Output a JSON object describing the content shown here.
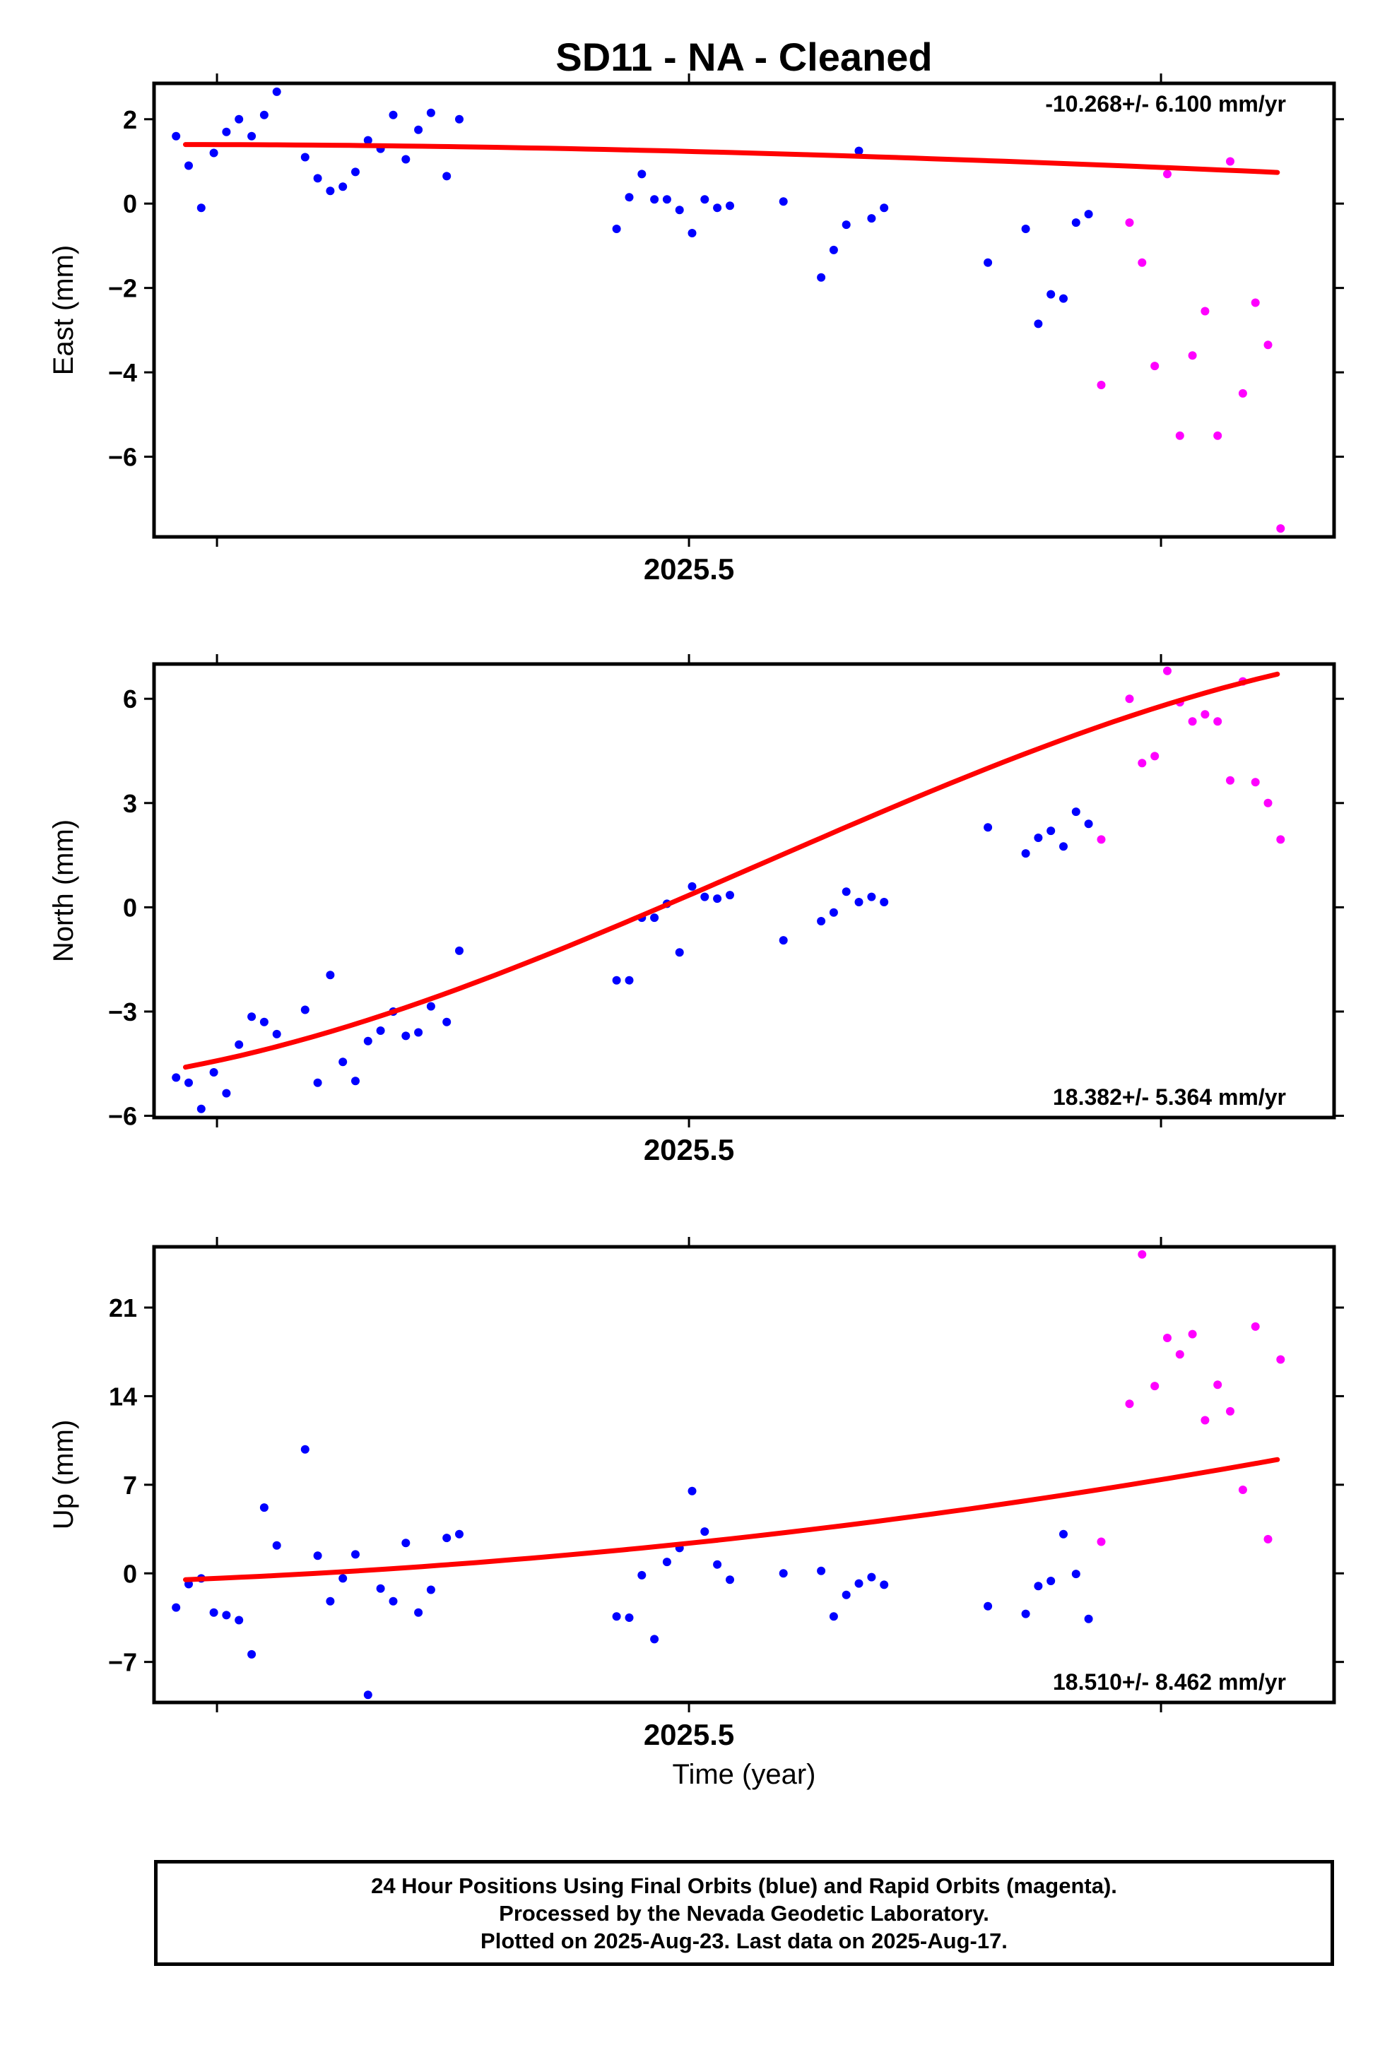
{
  "title": "SD11  - NA - Cleaned",
  "xlabel": "Time (year)",
  "footer": {
    "line1": "24 Hour Positions Using Final Orbits (blue) and Rapid Orbits (magenta).",
    "line2": "Processed by the Nevada Geodetic Laboratory.",
    "line3": "Plotted on 2025-Aug-23. Last data on 2025-Aug-17."
  },
  "colors": {
    "final": "#0000ff",
    "rapid": "#ff00ff",
    "fit": "#ff0000"
  },
  "chart_data": [
    {
      "type": "scatter",
      "ylabel": "East (mm)",
      "rate": "-10.268+/- 6.100 mm/yr",
      "ylim": [
        -7.9,
        2.85
      ],
      "yticks": [
        -6,
        -4,
        -2,
        0,
        2
      ],
      "xlim": [
        2025.33,
        2025.705
      ],
      "xticks_major": [
        2025.5
      ],
      "xticks_minor": [
        2025.35,
        2025.65
      ],
      "fit": {
        "x0": 2025.34,
        "x1": 2025.687,
        "coef": [
          1.4,
          -0.06,
          -6.6,
          3.7
        ]
      },
      "series": [
        {
          "kind": "final",
          "points": [
            [
              2025.337,
              1.6
            ],
            [
              2025.341,
              0.9
            ],
            [
              2025.345,
              -0.1
            ],
            [
              2025.349,
              1.2
            ],
            [
              2025.353,
              1.7
            ],
            [
              2025.357,
              2.0
            ],
            [
              2025.361,
              1.6
            ],
            [
              2025.365,
              2.1
            ],
            [
              2025.369,
              2.65
            ],
            [
              2025.378,
              1.1
            ],
            [
              2025.382,
              0.6
            ],
            [
              2025.386,
              0.3
            ],
            [
              2025.39,
              0.4
            ],
            [
              2025.394,
              0.75
            ],
            [
              2025.398,
              1.5
            ],
            [
              2025.402,
              1.3
            ],
            [
              2025.406,
              2.1
            ],
            [
              2025.41,
              1.05
            ],
            [
              2025.414,
              1.75
            ],
            [
              2025.418,
              2.15
            ],
            [
              2025.423,
              0.65
            ],
            [
              2025.427,
              2.0
            ],
            [
              2025.477,
              -0.6
            ],
            [
              2025.481,
              0.15
            ],
            [
              2025.485,
              0.7
            ],
            [
              2025.489,
              0.1
            ],
            [
              2025.493,
              0.1
            ],
            [
              2025.497,
              -0.15
            ],
            [
              2025.501,
              -0.7
            ],
            [
              2025.505,
              0.1
            ],
            [
              2025.509,
              -0.1
            ],
            [
              2025.513,
              -0.05
            ],
            [
              2025.53,
              0.05
            ],
            [
              2025.542,
              -1.75
            ],
            [
              2025.546,
              -1.1
            ],
            [
              2025.55,
              -0.5
            ],
            [
              2025.554,
              1.25
            ],
            [
              2025.558,
              -0.35
            ],
            [
              2025.562,
              -0.1
            ],
            [
              2025.595,
              -1.4
            ],
            [
              2025.607,
              -0.6
            ],
            [
              2025.611,
              -2.85
            ],
            [
              2025.615,
              -2.15
            ],
            [
              2025.619,
              -2.25
            ],
            [
              2025.623,
              -0.45
            ],
            [
              2025.627,
              -0.25
            ]
          ]
        },
        {
          "kind": "rapid",
          "points": [
            [
              2025.631,
              -4.3
            ],
            [
              2025.64,
              -0.45
            ],
            [
              2025.644,
              -1.4
            ],
            [
              2025.648,
              -3.85
            ],
            [
              2025.652,
              0.7
            ],
            [
              2025.656,
              -5.5
            ],
            [
              2025.66,
              -3.6
            ],
            [
              2025.664,
              -2.55
            ],
            [
              2025.668,
              -5.5
            ],
            [
              2025.672,
              1.0
            ],
            [
              2025.676,
              -4.5
            ],
            [
              2025.68,
              -2.35
            ],
            [
              2025.684,
              -3.35
            ],
            [
              2025.688,
              -7.7
            ]
          ]
        }
      ]
    },
    {
      "type": "scatter",
      "ylabel": "North (mm)",
      "rate": "18.382+/- 5.364 mm/yr",
      "ylim": [
        -6.05,
        7.0
      ],
      "yticks": [
        -6,
        -3,
        0,
        3,
        6
      ],
      "xlim": [
        2025.33,
        2025.705
      ],
      "xticks_major": [
        2025.5
      ],
      "xticks_minor": [
        2025.35,
        2025.65
      ],
      "fit": {
        "x0": 2025.34,
        "x1": 2025.687,
        "coef": [
          -4.6,
          17.0,
          123.0,
          -225.0
        ]
      },
      "series": [
        {
          "kind": "final",
          "points": [
            [
              2025.337,
              -4.9
            ],
            [
              2025.341,
              -5.05
            ],
            [
              2025.345,
              -5.8
            ],
            [
              2025.349,
              -4.75
            ],
            [
              2025.353,
              -5.35
            ],
            [
              2025.357,
              -3.95
            ],
            [
              2025.361,
              -3.15
            ],
            [
              2025.365,
              -3.3
            ],
            [
              2025.369,
              -3.65
            ],
            [
              2025.378,
              -2.95
            ],
            [
              2025.382,
              -5.05
            ],
            [
              2025.386,
              -1.95
            ],
            [
              2025.39,
              -4.45
            ],
            [
              2025.394,
              -5.0
            ],
            [
              2025.398,
              -3.85
            ],
            [
              2025.402,
              -3.55
            ],
            [
              2025.406,
              -3.0
            ],
            [
              2025.41,
              -3.7
            ],
            [
              2025.414,
              -3.6
            ],
            [
              2025.418,
              -2.85
            ],
            [
              2025.423,
              -3.3
            ],
            [
              2025.427,
              -1.25
            ],
            [
              2025.477,
              -2.1
            ],
            [
              2025.481,
              -2.1
            ],
            [
              2025.485,
              -0.3
            ],
            [
              2025.489,
              -0.3
            ],
            [
              2025.493,
              0.1
            ],
            [
              2025.497,
              -1.3
            ],
            [
              2025.501,
              0.6
            ],
            [
              2025.505,
              0.3
            ],
            [
              2025.509,
              0.25
            ],
            [
              2025.513,
              0.35
            ],
            [
              2025.53,
              -0.95
            ],
            [
              2025.542,
              -0.4
            ],
            [
              2025.546,
              -0.15
            ],
            [
              2025.55,
              0.45
            ],
            [
              2025.554,
              0.15
            ],
            [
              2025.558,
              0.3
            ],
            [
              2025.562,
              0.15
            ],
            [
              2025.595,
              2.3
            ],
            [
              2025.607,
              1.55
            ],
            [
              2025.611,
              2.0
            ],
            [
              2025.615,
              2.2
            ],
            [
              2025.619,
              1.75
            ],
            [
              2025.623,
              2.75
            ],
            [
              2025.627,
              2.4
            ]
          ]
        },
        {
          "kind": "rapid",
          "points": [
            [
              2025.631,
              1.95
            ],
            [
              2025.64,
              6.0
            ],
            [
              2025.644,
              4.15
            ],
            [
              2025.648,
              4.35
            ],
            [
              2025.652,
              6.8
            ],
            [
              2025.656,
              5.9
            ],
            [
              2025.66,
              5.35
            ],
            [
              2025.664,
              5.55
            ],
            [
              2025.668,
              5.35
            ],
            [
              2025.672,
              3.65
            ],
            [
              2025.676,
              6.5
            ],
            [
              2025.68,
              3.6
            ],
            [
              2025.684,
              3.0
            ],
            [
              2025.688,
              1.95
            ]
          ]
        }
      ]
    },
    {
      "type": "scatter",
      "ylabel": "Up (mm)",
      "rate": "18.510+/- 8.462 mm/yr",
      "ylim": [
        -10.2,
        25.8
      ],
      "yticks": [
        -7,
        0,
        7,
        14,
        21
      ],
      "xlim": [
        2025.33,
        2025.705
      ],
      "xticks_major": [
        2025.5
      ],
      "xticks_minor": [
        2025.35,
        2025.65
      ],
      "fit": {
        "x0": 2025.34,
        "x1": 2025.687,
        "coef": [
          -0.5,
          10.0,
          50.0,
          0.0
        ]
      },
      "series": [
        {
          "kind": "final",
          "points": [
            [
              2025.337,
              -2.7
            ],
            [
              2025.341,
              -0.85
            ],
            [
              2025.345,
              -0.4
            ],
            [
              2025.349,
              -3.1
            ],
            [
              2025.353,
              -3.3
            ],
            [
              2025.357,
              -3.7
            ],
            [
              2025.361,
              -6.4
            ],
            [
              2025.365,
              5.2
            ],
            [
              2025.369,
              2.2
            ],
            [
              2025.378,
              9.8
            ],
            [
              2025.382,
              1.4
            ],
            [
              2025.386,
              -2.2
            ],
            [
              2025.39,
              -0.4
            ],
            [
              2025.394,
              1.5
            ],
            [
              2025.398,
              -9.6
            ],
            [
              2025.402,
              -1.2
            ],
            [
              2025.406,
              -2.2
            ],
            [
              2025.41,
              2.4
            ],
            [
              2025.414,
              -3.1
            ],
            [
              2025.418,
              -1.3
            ],
            [
              2025.423,
              2.8
            ],
            [
              2025.427,
              3.1
            ],
            [
              2025.477,
              -3.4
            ],
            [
              2025.481,
              -3.5
            ],
            [
              2025.485,
              -0.15
            ],
            [
              2025.489,
              -5.2
            ],
            [
              2025.493,
              0.9
            ],
            [
              2025.497,
              2.0
            ],
            [
              2025.501,
              6.5
            ],
            [
              2025.505,
              3.3
            ],
            [
              2025.509,
              0.7
            ],
            [
              2025.513,
              -0.5
            ],
            [
              2025.53,
              0.0
            ],
            [
              2025.542,
              0.2
            ],
            [
              2025.546,
              -3.4
            ],
            [
              2025.55,
              -1.7
            ],
            [
              2025.554,
              -0.8
            ],
            [
              2025.558,
              -0.3
            ],
            [
              2025.562,
              -0.9
            ],
            [
              2025.595,
              -2.6
            ],
            [
              2025.607,
              -3.2
            ],
            [
              2025.611,
              -1.0
            ],
            [
              2025.615,
              -0.6
            ],
            [
              2025.619,
              3.1
            ],
            [
              2025.623,
              -0.05
            ],
            [
              2025.627,
              -3.6
            ]
          ]
        },
        {
          "kind": "rapid",
          "points": [
            [
              2025.631,
              2.5
            ],
            [
              2025.64,
              13.4
            ],
            [
              2025.644,
              25.2
            ],
            [
              2025.648,
              14.8
            ],
            [
              2025.652,
              18.6
            ],
            [
              2025.656,
              17.3
            ],
            [
              2025.66,
              18.9
            ],
            [
              2025.664,
              12.1
            ],
            [
              2025.668,
              14.9
            ],
            [
              2025.672,
              12.8
            ],
            [
              2025.676,
              6.6
            ],
            [
              2025.68,
              19.5
            ],
            [
              2025.684,
              2.7
            ],
            [
              2025.688,
              16.9
            ]
          ]
        }
      ]
    }
  ]
}
